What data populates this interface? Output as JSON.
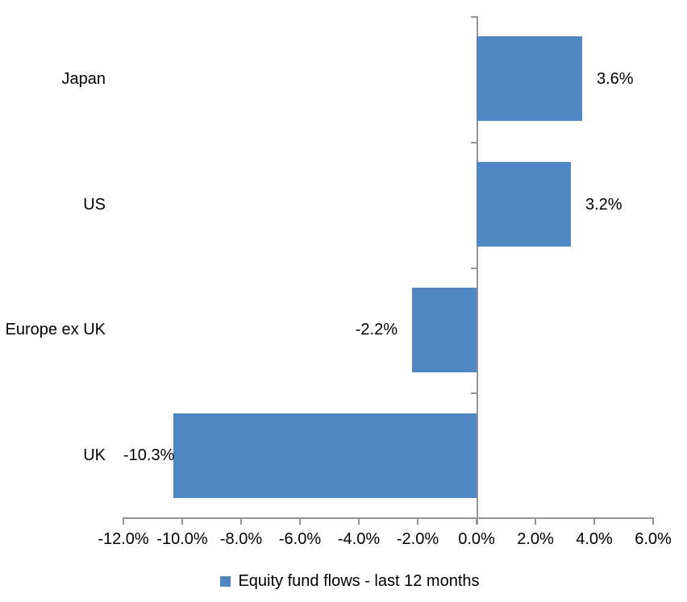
{
  "chart_data": {
    "type": "bar",
    "orientation": "horizontal",
    "title": "",
    "categories": [
      "Japan",
      "US",
      "Europe ex UK",
      "UK"
    ],
    "series": [
      {
        "name": "Equity fund flows - last 12 months",
        "values": [
          3.6,
          3.2,
          -2.2,
          -10.3
        ],
        "data_labels": [
          "3.6%",
          "3.2%",
          "-2.2%",
          "-10.3%"
        ],
        "color": "#4E87C1"
      }
    ],
    "xlim": [
      -12,
      6
    ],
    "x_ticks": [
      -12,
      -10,
      -8,
      -6,
      -4,
      -2,
      0,
      2,
      4,
      6
    ],
    "x_tick_labels": [
      "-12.0%",
      "-10.0%",
      "-8.0%",
      "-6.0%",
      "-4.0%",
      "-2.0%",
      "0.0%",
      "2.0%",
      "4.0%",
      "6.0%"
    ],
    "grid": false,
    "legend_position": "bottom",
    "axis_color": "#949494",
    "text_color": "#000000",
    "background_color": "#FFFFFF"
  }
}
